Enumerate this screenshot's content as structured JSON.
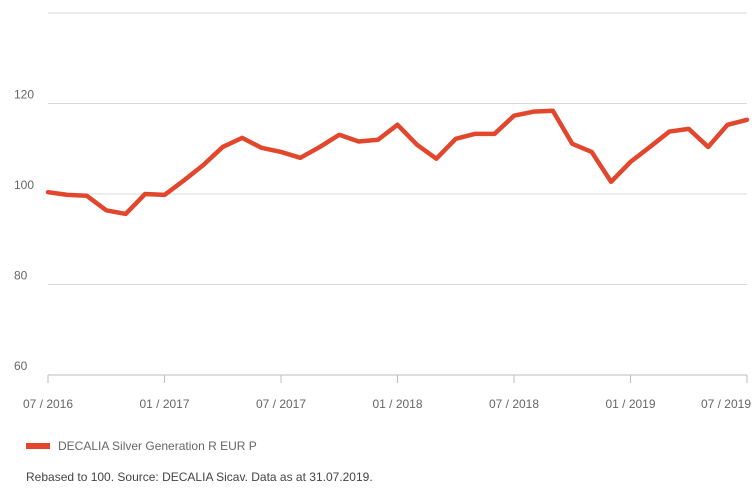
{
  "chart_data": {
    "type": "line",
    "categories": [
      "07 / 2016",
      null,
      null,
      null,
      null,
      null,
      "01 / 2017",
      null,
      null,
      null,
      null,
      null,
      "07 / 2017",
      null,
      null,
      null,
      null,
      null,
      "01 / 2018",
      null,
      null,
      null,
      null,
      null,
      "07 / 2018",
      null,
      null,
      null,
      null,
      null,
      "01 / 2019",
      null,
      null,
      null,
      null,
      null,
      "07 / 2019"
    ],
    "series": [
      {
        "name": "DECALIA Silver Generation R EUR P",
        "color": "#e2472d",
        "values": [
          100.4,
          99.8,
          99.6,
          96.4,
          95.6,
          100,
          99.8,
          103,
          106.4,
          110.4,
          112.4,
          110.2,
          109.3,
          108,
          110.4,
          113.1,
          111.6,
          112,
          115.3,
          110.9,
          107.8,
          112.2,
          113.3,
          113.3,
          117.3,
          118.2,
          118.4,
          111.1,
          109.3,
          102.7,
          107.1,
          110.4,
          113.8,
          114.4,
          110.4,
          115.3,
          116.4
        ]
      }
    ],
    "ylim": [
      60,
      140
    ],
    "yticks": [
      60,
      80,
      100,
      120
    ],
    "grid": true,
    "legend": "bottom-left",
    "footnote": "Rebased to 100. Source: DECALIA Sicav. Data as at 31.07.2019."
  }
}
